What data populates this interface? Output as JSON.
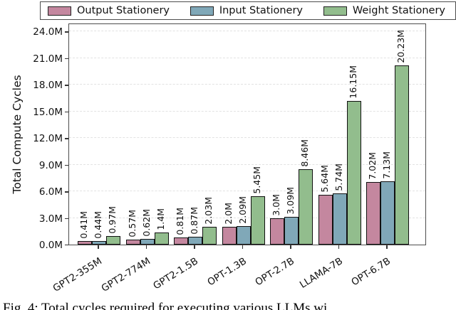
{
  "figure": {
    "caption": "Fig. 4: Total cycles required for executing various LLMs wi"
  },
  "chart_data": {
    "type": "bar",
    "title": "",
    "xlabel": "",
    "ylabel": "Total Compute Cycles",
    "legend_position": "top",
    "grid": "horizontal-dashed",
    "bar_edge_color": "#111111",
    "ylim": [
      0,
      25
    ],
    "y_tick_interval": 3,
    "y_ticks": [
      "0.0M",
      "3.0M",
      "6.0M",
      "9.0M",
      "12.0M",
      "15.0M",
      "18.0M",
      "21.0M",
      "24.0M"
    ],
    "categories": [
      "GPT2-355M",
      "GPT2-774M",
      "GPT2-1.5B",
      "OPT-1.3B",
      "OPT-2.7B",
      "LLAMA-7B",
      "OPT-6.7B"
    ],
    "series": [
      {
        "name": "Output Stationery",
        "color": "#c4879f",
        "values": [
          0.41,
          0.57,
          0.81,
          2.0,
          3.0,
          5.64,
          7.02
        ],
        "value_labels": [
          "0.41M",
          "0.57M",
          "0.81M",
          "2.0M",
          "3.0M",
          "5.64M",
          "7.02M"
        ]
      },
      {
        "name": "Input Stationery",
        "color": "#80a8b8",
        "values": [
          0.44,
          0.62,
          0.87,
          2.09,
          3.09,
          5.74,
          7.13
        ],
        "value_labels": [
          "0.44M",
          "0.62M",
          "0.87M",
          "2.09M",
          "3.09M",
          "5.74M",
          "7.13M"
        ]
      },
      {
        "name": "Weight Stationery",
        "color": "#92bd8d",
        "values": [
          0.97,
          1.4,
          2.03,
          5.45,
          8.46,
          16.15,
          20.23
        ],
        "value_labels": [
          "0.97M",
          "1.4M",
          "2.03M",
          "5.45M",
          "8.46M",
          "16.15M",
          "20.23M"
        ]
      }
    ]
  }
}
